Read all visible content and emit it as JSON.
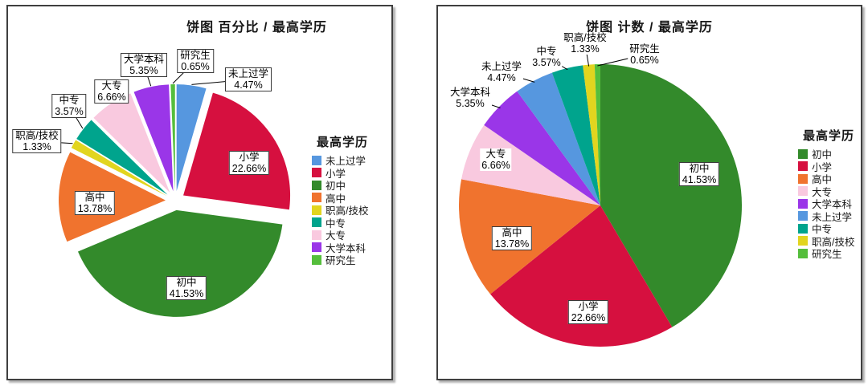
{
  "page": {
    "background_color": "#ffffff"
  },
  "category_colors": {
    "未上过学": "#5697DF",
    "小学": "#D6103F",
    "初中": "#338A2B",
    "高中": "#F0732E",
    "职高/技校": "#E2D51F",
    "中专": "#00A48D",
    "大专": "#F9C9DF",
    "大学本科": "#9A36E8",
    "研究生": "#55BE3C"
  },
  "chart_data": [
    {
      "type": "pie",
      "title": "饼图 百分比 / 最高学历",
      "legend_title": "最高学历",
      "legend_position": "right",
      "variant": "exploded",
      "unit": "percent",
      "categories": [
        "未上过学",
        "小学",
        "初中",
        "高中",
        "职高/技校",
        "中专",
        "大专",
        "大学本科",
        "研究生"
      ],
      "values": [
        4.47,
        22.66,
        41.53,
        13.78,
        1.33,
        3.57,
        6.66,
        5.35,
        0.65
      ]
    },
    {
      "type": "pie",
      "title": "饼图 计数 / 最高学历",
      "legend_title": "最高学历",
      "legend_position": "right",
      "variant": "solid",
      "unit": "percent",
      "categories": [
        "初中",
        "小学",
        "高中",
        "大专",
        "大学本科",
        "未上过学",
        "中专",
        "职高/技校",
        "研究生"
      ],
      "values": [
        41.53,
        22.66,
        13.78,
        6.66,
        5.35,
        4.47,
        3.57,
        1.33,
        0.65
      ]
    }
  ]
}
